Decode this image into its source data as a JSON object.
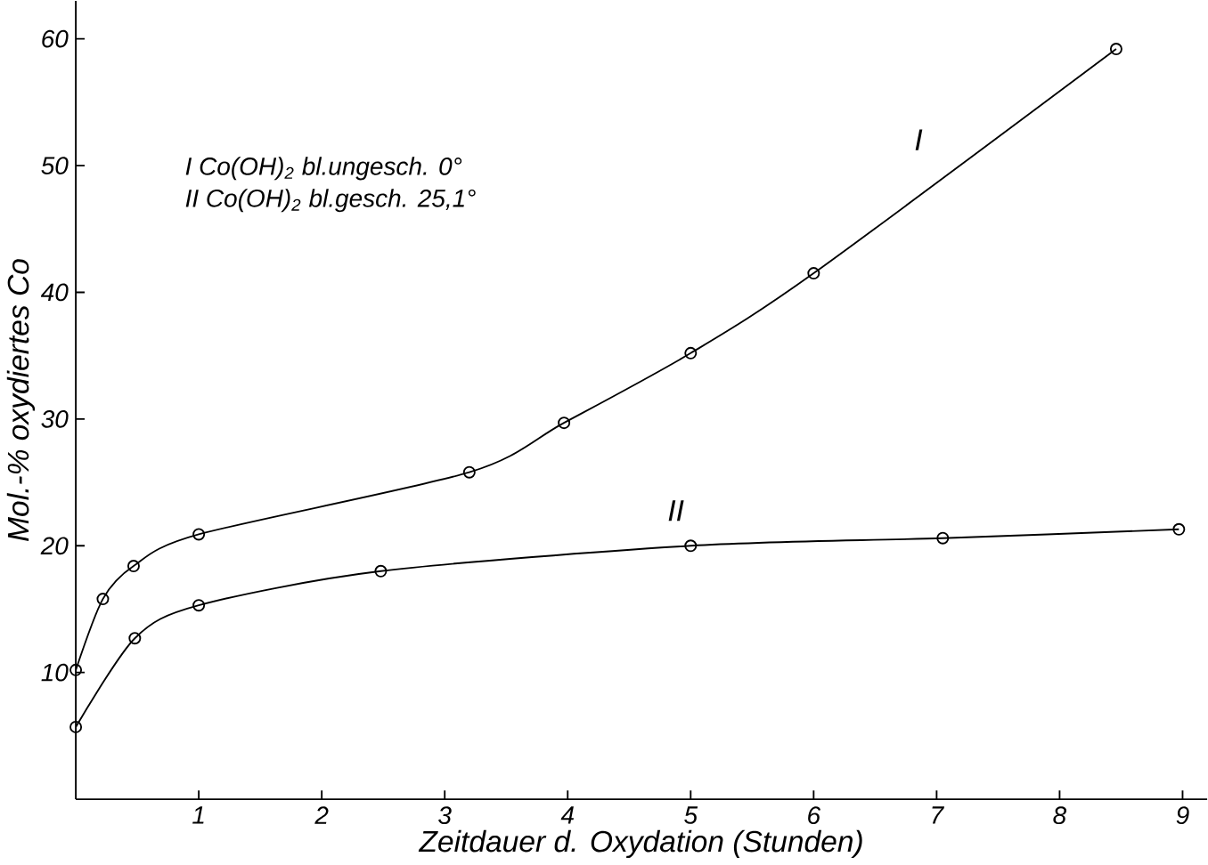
{
  "chart_data": {
    "type": "line",
    "xlabel": "Zeitdauer d. Oxydation (Stunden)",
    "ylabel": "Mol.-% oxydiertes Co",
    "annotations": [
      "I  Co(OH)$_{2}$ bl.ungesch. 0°",
      "II  Co(OH)$_{2}$ bl.gesch. 25,1°"
    ],
    "xlim": [
      0,
      9.2
    ],
    "ylim": [
      0,
      63
    ],
    "xticks": [
      1,
      2,
      3,
      4,
      5,
      6,
      7,
      8,
      9
    ],
    "yticks": [
      10,
      20,
      30,
      40,
      50,
      60
    ],
    "marker": "circle",
    "line_style": "solid",
    "grid": false,
    "series": [
      {
        "name": "I",
        "color": "#000000",
        "x": [
          0,
          0.22,
          0.47,
          1.0,
          3.2,
          3.97,
          5.0,
          6.0,
          8.46
        ],
        "values": [
          10.2,
          15.8,
          18.4,
          20.9,
          25.8,
          29.7,
          35.2,
          41.5,
          59.2
        ]
      },
      {
        "name": "II",
        "color": "#000000",
        "x": [
          0,
          0.48,
          1.0,
          2.48,
          5.0,
          7.05,
          8.97
        ],
        "values": [
          5.7,
          12.7,
          15.3,
          18.0,
          20.0,
          20.6,
          21.3
        ]
      }
    ]
  }
}
